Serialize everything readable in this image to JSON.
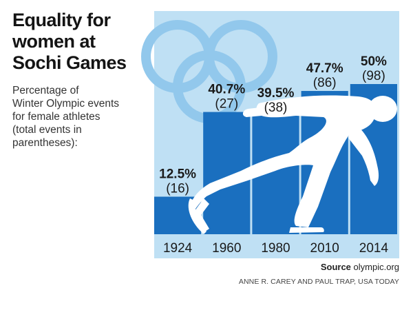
{
  "header": {
    "title_lines": [
      "Equality for",
      "women at",
      "Sochi Games"
    ],
    "subtitle_lines": [
      "Percentage of",
      "Winter Olympic events",
      "for female athletes",
      "(total events in",
      "parentheses):"
    ]
  },
  "footer": {
    "source_label": "Source",
    "source_value": "olympic.org",
    "credit": "ANNE R. CAREY AND PAUL TRAP, USA TODAY"
  },
  "colors": {
    "bar": "#1a6fbf",
    "panel_bg": "#bfe0f4",
    "rings": "#92c8ec",
    "axis_strip": "#bfe0f4",
    "skater": "#ffffff",
    "text": "#1a1a1a"
  },
  "chart_data": {
    "type": "bar",
    "categories": [
      "1924",
      "1960",
      "1980",
      "2010",
      "2014"
    ],
    "values": [
      12.5,
      40.7,
      39.5,
      47.7,
      50
    ],
    "value_labels": [
      "12.5%",
      "40.7%",
      "39.5%",
      "47.7%",
      "50%"
    ],
    "event_counts": [
      "(16)",
      "(27)",
      "(38)",
      "(86)",
      "(98)"
    ],
    "ylim": [
      0,
      55
    ],
    "grid": false,
    "legend": "none",
    "decorations": [
      "olympic-rings",
      "speed-skater-silhouette"
    ]
  }
}
